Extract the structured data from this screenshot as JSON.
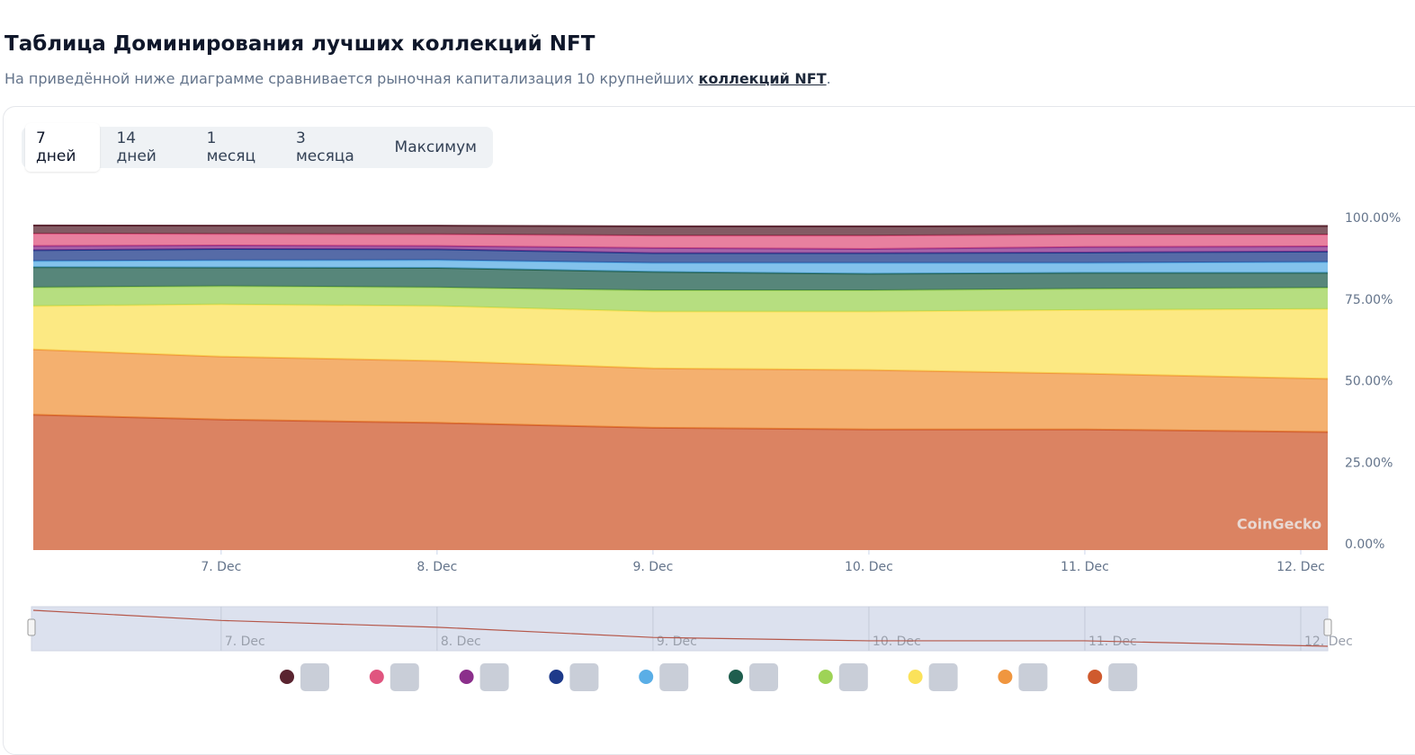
{
  "header": {
    "title": "Таблица Доминирования лучших коллекций NFT",
    "subtitle": "На приведённой ниже диаграмме сравнивается рыночная капитализация 10 крупнейших ",
    "subtitle_link": "коллекций NFT",
    "subtitle_end": "."
  },
  "tabs": [
    "7 дней",
    "14 дней",
    "1 месяц",
    "3 месяца",
    "Максимум"
  ],
  "chart_data": {
    "type": "stacked-area",
    "watermark": "CoinGecko",
    "x": [
      6.13,
      7,
      8,
      9,
      10,
      11,
      12.125
    ],
    "xlim": [
      6.13,
      12.125
    ],
    "xticks": [
      {
        "value": 7,
        "label": "7. Dec"
      },
      {
        "value": 8,
        "label": "8. Dec"
      },
      {
        "value": 9,
        "label": "9. Dec"
      },
      {
        "value": 10,
        "label": "10. Dec"
      },
      {
        "value": 11,
        "label": "11. Dec"
      },
      {
        "value": 12,
        "label": "12. Dec"
      }
    ],
    "ylim": [
      0,
      100
    ],
    "yticks": [
      {
        "value": 0,
        "label": "0.00%"
      },
      {
        "value": 25,
        "label": "25.00%"
      },
      {
        "value": 50,
        "label": "50.00%"
      },
      {
        "value": 75,
        "label": "75.00%"
      },
      {
        "value": 100,
        "label": "100.00%"
      }
    ],
    "series": [
      {
        "color": "#cf5a2e",
        "values": [
          41.5,
          40,
          39,
          37.5,
          37,
          37,
          36.2
        ]
      },
      {
        "color": "#f0963f",
        "values": [
          20,
          19.3,
          19,
          18.2,
          18.2,
          17.1,
          16.3
        ]
      },
      {
        "color": "#fbe25a",
        "values": [
          13.3,
          16,
          16.8,
          17.4,
          17.9,
          19.5,
          21.4
        ]
      },
      {
        "color": "#9ed356",
        "values": [
          5.7,
          5.6,
          5.7,
          6.5,
          6.5,
          6.5,
          6.5
        ]
      },
      {
        "color": "#1f5e4e",
        "values": [
          6.2,
          5.7,
          6,
          5.7,
          5.1,
          4.9,
          4.6
        ]
      },
      {
        "color": "#5aaee6",
        "values": [
          1.9,
          2.2,
          2.4,
          2.7,
          3.3,
          3,
          3.3
        ]
      },
      {
        "color": "#1e3a8a",
        "values": [
          3.3,
          3.5,
          3.3,
          3,
          3,
          3.2,
          3.2
        ]
      },
      {
        "color": "#8b2f8b",
        "values": [
          1.3,
          1.1,
          1,
          1.6,
          1.3,
          1.7,
          1.6
        ]
      },
      {
        "color": "#e0557f",
        "values": [
          3.8,
          3.5,
          3.6,
          3.8,
          4.1,
          3.8,
          3.6
        ]
      },
      {
        "color": "#5a2430",
        "values": [
          2.5,
          2.5,
          2.6,
          2.8,
          2.8,
          2.6,
          2.6
        ]
      }
    ]
  }
}
